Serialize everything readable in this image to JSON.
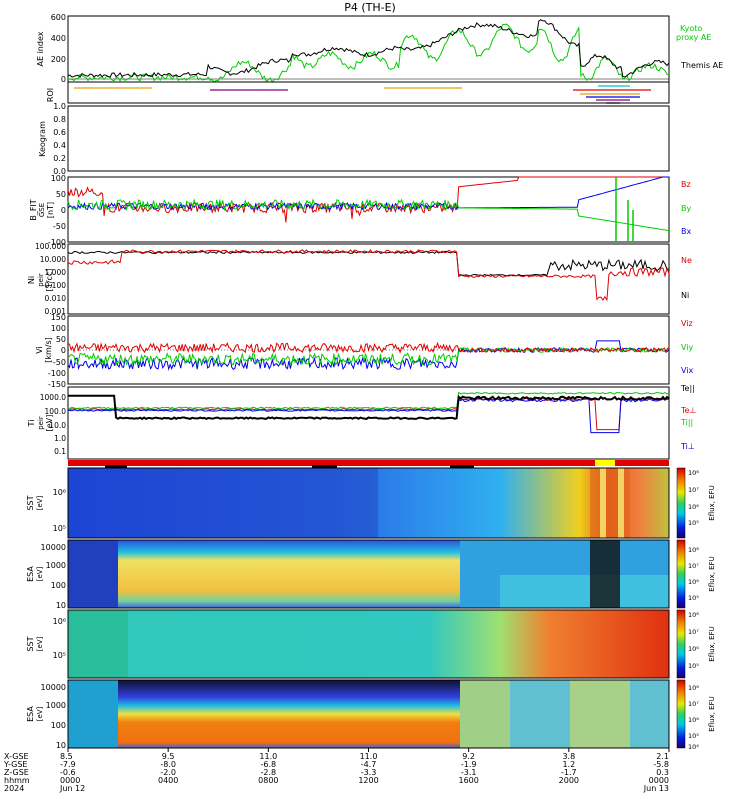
{
  "title": "P4 (TH-E)",
  "colors": {
    "black": "#000000",
    "red": "#e00000",
    "green": "#00cc00",
    "blue": "#0000ee",
    "orange": "#e8a000",
    "purple": "#800080",
    "cyan": "#00c8c8",
    "yellow": "#ffff00"
  },
  "chart_data": [
    {
      "type": "line",
      "ylabel": "AE index",
      "ylim": [
        0,
        600
      ],
      "yticks": [
        "0",
        "200",
        "400",
        "600"
      ],
      "series": [
        {
          "name": "Kyoto proxy AE",
          "color": "green"
        },
        {
          "name": "Themis AE",
          "color": "black"
        }
      ],
      "legend_kyoto": "Kyoto",
      "legend_proxy": "proxy AE",
      "legend_themis": "Themis AE"
    },
    {
      "type": "bar",
      "ylabel": "ROI"
    },
    {
      "type": "heatmap",
      "ylabel": "Keogram",
      "ylim": [
        0,
        1.0
      ],
      "yticks": [
        "0.0",
        "0.2",
        "0.4",
        "0.6",
        "0.8",
        "1.0"
      ]
    },
    {
      "type": "line",
      "ylabel": "B_FIT",
      "ylabel2": "GSE",
      "ylabel3": "[nT]",
      "ylim": [
        -100,
        100
      ],
      "yticks": [
        "-100",
        "-50",
        "0",
        "50",
        "100"
      ],
      "series": [
        {
          "name": "Bz",
          "color": "red"
        },
        {
          "name": "By",
          "color": "green"
        },
        {
          "name": "Bx",
          "color": "blue"
        }
      ]
    },
    {
      "type": "line",
      "ylabel": "Ni",
      "ylabel2": "peir",
      "ylabel3": "[1/cc]",
      "log_scale": true,
      "yticks": [
        "0.001",
        "0.010",
        "0.100",
        "1.000",
        "10.000",
        "100.000"
      ],
      "series": [
        {
          "name": "Ne",
          "color": "red"
        },
        {
          "name": "Ni",
          "color": "black"
        }
      ]
    },
    {
      "type": "line",
      "ylabel": "Vi",
      "ylabel3": "[km/s]",
      "ylim": [
        -150,
        150
      ],
      "yticks": [
        "-150",
        "-100",
        "-50",
        "0",
        "50",
        "100",
        "150"
      ],
      "series": [
        {
          "name": "Viz",
          "color": "red"
        },
        {
          "name": "Viy",
          "color": "green"
        },
        {
          "name": "Vix",
          "color": "blue"
        }
      ]
    },
    {
      "type": "line",
      "ylabel": "Ti",
      "ylabel2": "peir",
      "ylabel3": "[eV]",
      "log_scale": true,
      "yticks": [
        "0.1",
        "1.0",
        "10.0",
        "100.0",
        "1000.0"
      ],
      "series": [
        {
          "name": "Te||",
          "color": "black"
        },
        {
          "name": "Te⊥",
          "color": "red"
        },
        {
          "name": "Ti||",
          "color": "green"
        },
        {
          "name": "Ti⊥",
          "color": "blue"
        }
      ]
    },
    {
      "type": "heatmap",
      "ylabel": "SST",
      "ylabel2": "[eV]",
      "yticks": [
        "10⁵",
        "10⁶"
      ],
      "colorbar_label": "Eflux, EFU",
      "colorbar_ticks": [
        "10⁴",
        "10⁵",
        "10⁶",
        "10⁷",
        "10⁸"
      ]
    },
    {
      "type": "heatmap",
      "ylabel": "ESA",
      "ylabel2": "[eV]",
      "yticks": [
        "10",
        "100",
        "1000",
        "10000"
      ],
      "colorbar_label": "Eflux, EFU",
      "colorbar_ticks": [
        "10⁴",
        "10⁵",
        "10⁶",
        "10⁷",
        "10⁸"
      ]
    },
    {
      "type": "heatmap",
      "ylabel": "SST",
      "ylabel2": "[eV]",
      "yticks": [
        "10⁵",
        "10⁶"
      ],
      "colorbar_label": "Eflux, EFU",
      "colorbar_ticks": [
        "10⁴",
        "10⁵",
        "10⁶",
        "10⁷",
        "10⁸"
      ]
    },
    {
      "type": "heatmap",
      "ylabel": "ESA",
      "ylabel2": "[eV]",
      "yticks": [
        "10",
        "100",
        "1000",
        "10000"
      ],
      "colorbar_label": "Eflux, EFU",
      "colorbar_ticks": [
        "10⁴",
        "10⁵",
        "10⁶",
        "10⁷",
        "10⁸"
      ]
    }
  ],
  "xaxis": {
    "row_labels": [
      "X-GSE",
      "Y-GSE",
      "Z-GSE",
      "hhmm",
      "2024"
    ],
    "columns": [
      {
        "x": "8.5",
        "y": "-7.9",
        "z": "-0.6",
        "t": "0000",
        "d": "Jun 12"
      },
      {
        "x": "9.5",
        "y": "-8.0",
        "z": "-2.0",
        "t": "0400",
        "d": ""
      },
      {
        "x": "11.0",
        "y": "-6.8",
        "z": "-2.8",
        "t": "0800",
        "d": ""
      },
      {
        "x": "11.0",
        "y": "-4.7",
        "z": "-3.3",
        "t": "1200",
        "d": ""
      },
      {
        "x": "9.2",
        "y": "-1.9",
        "z": "-3.1",
        "t": "1600",
        "d": ""
      },
      {
        "x": "3.8",
        "y": "1.2",
        "z": "-1.7",
        "t": "2000",
        "d": ""
      },
      {
        "x": "2.1",
        "y": "-5.8",
        "z": "0.3",
        "t": "0000",
        "d": "Jun 13"
      }
    ]
  }
}
